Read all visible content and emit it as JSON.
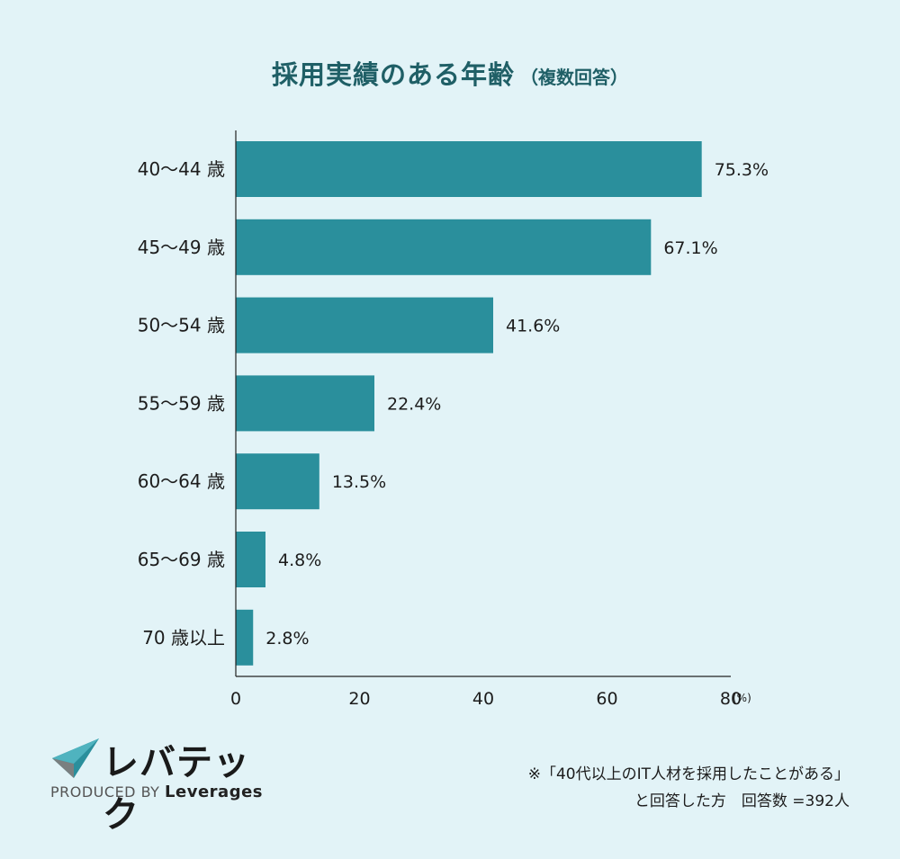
{
  "header": {
    "title": "採用実績のある年齢",
    "subtitle": "（複数回答）"
  },
  "chart_data": {
    "type": "bar",
    "orientation": "horizontal",
    "title": "採用実績のある年齢（複数回答）",
    "categories": [
      "40〜44 歳",
      "45〜49 歳",
      "50〜54 歳",
      "55〜59 歳",
      "60〜64 歳",
      "65〜69 歳",
      "70 歳以上"
    ],
    "values": [
      75.3,
      67.1,
      41.6,
      22.4,
      13.5,
      4.8,
      2.8
    ],
    "value_labels": [
      "75.3%",
      "67.1%",
      "41.6%",
      "22.4%",
      "13.5%",
      "4.8%",
      "2.8%"
    ],
    "xlim": [
      0,
      80
    ],
    "x_ticks": [
      "0",
      "20",
      "40",
      "60",
      "80"
    ],
    "x_unit": "(%)",
    "bar_color": "#2a8f9c",
    "grid": false
  },
  "footer": {
    "brand": "レバテック",
    "produced_by": "PRODUCED BY",
    "company": "Leverages",
    "note_line1": "※「40代以上のIT人材を採用したことがある」",
    "note_line2": "と回答した方　回答数 =392人"
  }
}
